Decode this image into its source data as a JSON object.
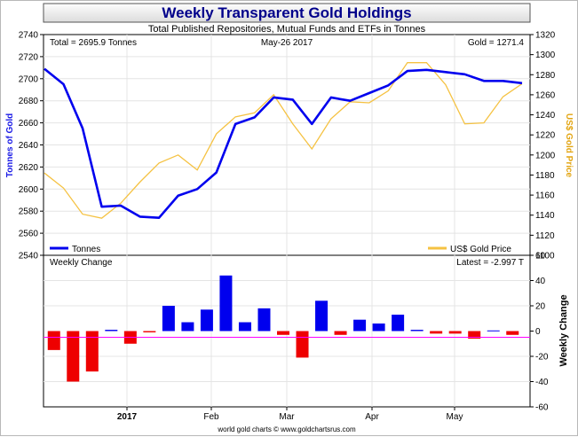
{
  "header": {
    "title": "Weekly Transparent Gold Holdings",
    "subtitle": "Total Published Repositories, Mutual Funds and ETFs in Tonnes"
  },
  "upper_panel": {
    "total_label": "Total = 2695.9 Tonnes",
    "date_label": "May-26  2017",
    "gold_label": "Gold = 1271.4",
    "legend_tonnes": "Tonnes",
    "legend_gold": "US$ Gold Price",
    "left_axis_title": "Tonnes of Gold",
    "right_axis_title": "US$ Gold Price"
  },
  "lower_panel": {
    "label": "Weekly Change",
    "latest_label": "Latest = -2.997 T",
    "right_axis_title": "Weekly Change"
  },
  "footer": "world gold charts © www.goldchartsrus.com",
  "colors": {
    "tonnes": "#0000ee",
    "gold": "#f5c242",
    "positive": "#0000ee",
    "negative": "#ee0000",
    "title": "#00008b"
  },
  "chart_data": [
    {
      "type": "line",
      "title": "Weekly Transparent Gold Holdings",
      "subtitle": "Total Published Repositories, Mutual Funds and ETFs in Tonnes",
      "x_ticks": [
        "2017",
        "Feb",
        "Mar",
        "Apr",
        "May"
      ],
      "ylabel": "Tonnes of Gold",
      "ylim": [
        2540,
        2740
      ],
      "y_ticks": [
        2540,
        2560,
        2580,
        2600,
        2620,
        2640,
        2660,
        2680,
        2700,
        2720,
        2740
      ],
      "y2label": "US$ Gold Price",
      "y2lim": [
        1100,
        1320
      ],
      "y2_ticks": [
        1100,
        1120,
        1140,
        1160,
        1180,
        1200,
        1220,
        1240,
        1260,
        1280,
        1300,
        1320
      ],
      "series": [
        {
          "name": "Tonnes",
          "axis": "left",
          "values": [
            2709,
            2695,
            2655,
            2584,
            2585,
            2575,
            2574,
            2594,
            2600,
            2615,
            2659,
            2665,
            2683,
            2681,
            2659,
            2683,
            2680,
            2687,
            2694,
            2707,
            2708,
            2706,
            2704,
            2698,
            2698,
            2696
          ]
        },
        {
          "name": "US$ Gold Price",
          "axis": "right",
          "values": [
            1182,
            1167,
            1141,
            1137,
            1152,
            1173,
            1192,
            1200,
            1185,
            1221,
            1238,
            1242,
            1260,
            1231,
            1206,
            1236,
            1253,
            1252,
            1264,
            1292,
            1292,
            1270,
            1231,
            1232,
            1258,
            1271
          ]
        }
      ]
    },
    {
      "type": "bar",
      "title": "Weekly Change",
      "ylabel": "Weekly Change",
      "ylim": [
        -60,
        60
      ],
      "y_ticks": [
        -60,
        -40,
        -20,
        0,
        20,
        40,
        60
      ],
      "series": [
        {
          "name": "Weekly Change",
          "values": [
            -15,
            -40,
            -32,
            1,
            -10,
            -1,
            20,
            7,
            17,
            44,
            7,
            18,
            -3,
            -21,
            24,
            -3,
            9,
            6,
            13,
            1,
            -2,
            -2,
            -6,
            0.5,
            -3
          ]
        }
      ]
    }
  ]
}
